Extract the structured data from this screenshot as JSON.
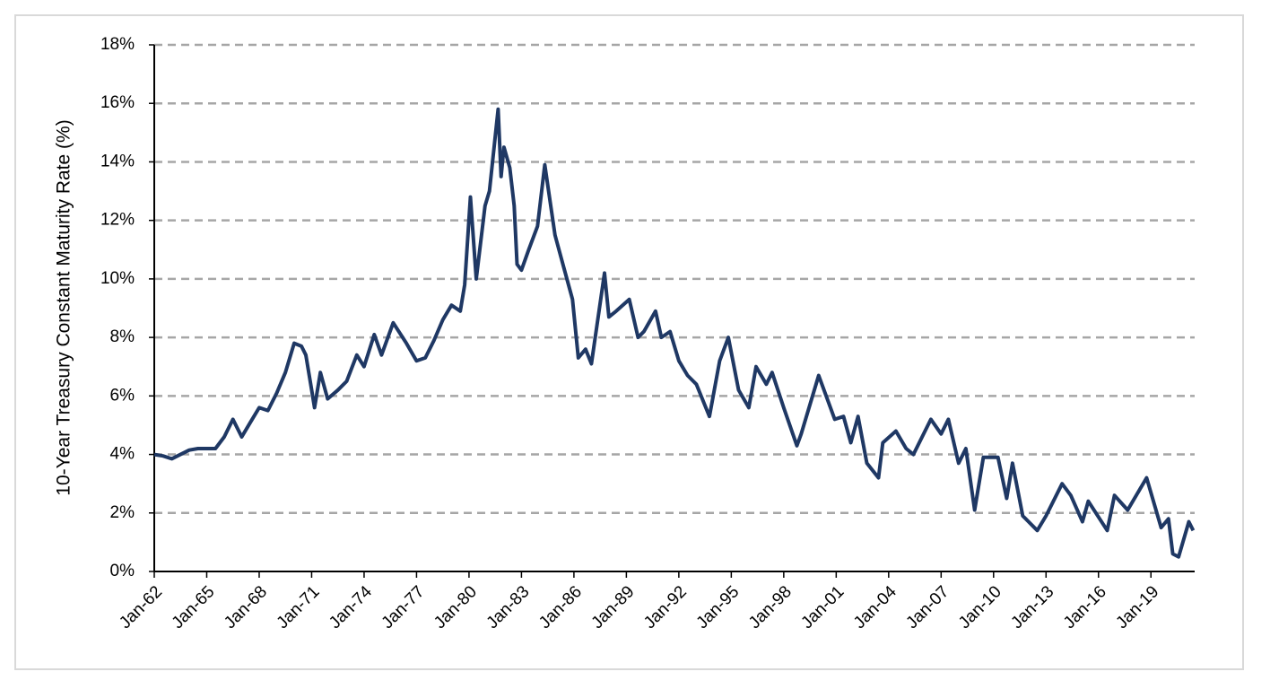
{
  "chart_data": {
    "type": "line",
    "y_label": "10-Year Treasury Constant Maturity Rate (%)",
    "ylim": [
      0,
      18
    ],
    "yticks": [
      {
        "value": 0,
        "label": "0%"
      },
      {
        "value": 2,
        "label": "2%"
      },
      {
        "value": 4,
        "label": "4%"
      },
      {
        "value": 6,
        "label": "6%"
      },
      {
        "value": 8,
        "label": "8%"
      },
      {
        "value": 10,
        "label": "10%"
      },
      {
        "value": 12,
        "label": "12%"
      },
      {
        "value": 14,
        "label": "14%"
      },
      {
        "value": 16,
        "label": "16%"
      },
      {
        "value": 18,
        "label": "18%"
      }
    ],
    "xlim": [
      "1962-01",
      "2021-07"
    ],
    "xticks": [
      {
        "value": "1962-01",
        "label": "Jan-62"
      },
      {
        "value": "1965-01",
        "label": "Jan-65"
      },
      {
        "value": "1968-01",
        "label": "Jan-68"
      },
      {
        "value": "1971-01",
        "label": "Jan-71"
      },
      {
        "value": "1974-01",
        "label": "Jan-74"
      },
      {
        "value": "1977-01",
        "label": "Jan-77"
      },
      {
        "value": "1980-01",
        "label": "Jan-80"
      },
      {
        "value": "1983-01",
        "label": "Jan-83"
      },
      {
        "value": "1986-01",
        "label": "Jan-86"
      },
      {
        "value": "1989-01",
        "label": "Jan-89"
      },
      {
        "value": "1992-01",
        "label": "Jan-92"
      },
      {
        "value": "1995-01",
        "label": "Jan-95"
      },
      {
        "value": "1998-01",
        "label": "Jan-98"
      },
      {
        "value": "2001-01",
        "label": "Jan-01"
      },
      {
        "value": "2004-01",
        "label": "Jan-04"
      },
      {
        "value": "2007-01",
        "label": "Jan-07"
      },
      {
        "value": "2010-01",
        "label": "Jan-10"
      },
      {
        "value": "2013-01",
        "label": "Jan-13"
      },
      {
        "value": "2016-01",
        "label": "Jan-16"
      },
      {
        "value": "2019-01",
        "label": "Jan-19"
      }
    ],
    "grid": true,
    "series": [
      {
        "color": "#1f3864",
        "x": [
          "1962-01",
          "1962-07",
          "1963-01",
          "1963-07",
          "1964-01",
          "1964-07",
          "1965-01",
          "1965-07",
          "1966-01",
          "1966-07",
          "1967-01",
          "1967-07",
          "1968-01",
          "1968-07",
          "1969-01",
          "1969-07",
          "1970-01",
          "1970-06",
          "1970-09",
          "1971-01",
          "1971-03",
          "1971-07",
          "1971-12",
          "1972-07",
          "1973-01",
          "1973-08",
          "1974-01",
          "1974-08",
          "1975-01",
          "1975-09",
          "1976-06",
          "1977-01",
          "1977-07",
          "1978-01",
          "1978-07",
          "1979-01",
          "1979-07",
          "1979-10",
          "1980-02",
          "1980-06",
          "1980-12",
          "1981-03",
          "1981-09",
          "1981-11",
          "1982-01",
          "1982-05",
          "1982-08",
          "1982-10",
          "1983-01",
          "1983-06",
          "1983-12",
          "1984-05",
          "1984-12",
          "1985-06",
          "1985-12",
          "1986-04",
          "1986-09",
          "1987-01",
          "1987-10",
          "1988-01",
          "1988-06",
          "1989-03",
          "1989-09",
          "1990-01",
          "1990-09",
          "1991-01",
          "1991-07",
          "1992-01",
          "1992-07",
          "1993-01",
          "1993-10",
          "1994-05",
          "1994-11",
          "1995-06",
          "1996-01",
          "1996-06",
          "1997-01",
          "1997-05",
          "1998-01",
          "1998-10",
          "1999-01",
          "2000-01",
          "2000-12",
          "2001-06",
          "2001-11",
          "2002-04",
          "2002-10",
          "2003-06",
          "2003-09",
          "2004-06",
          "2005-01",
          "2005-06",
          "2006-06",
          "2007-01",
          "2007-06",
          "2008-01",
          "2008-06",
          "2008-12",
          "2009-06",
          "2010-04",
          "2010-10",
          "2011-02",
          "2011-09",
          "2012-07",
          "2013-01",
          "2013-12",
          "2014-06",
          "2015-02",
          "2015-06",
          "2016-07",
          "2016-12",
          "2017-09",
          "2018-10",
          "2019-08",
          "2020-01",
          "2020-04",
          "2020-08",
          "2021-03",
          "2021-06"
        ],
        "values": [
          4.0,
          3.95,
          3.85,
          4.0,
          4.15,
          4.2,
          4.2,
          4.2,
          4.6,
          5.2,
          4.6,
          5.1,
          5.6,
          5.5,
          6.1,
          6.8,
          7.8,
          7.7,
          7.4,
          6.2,
          5.6,
          6.8,
          5.9,
          6.2,
          6.5,
          7.4,
          7.0,
          8.1,
          7.4,
          8.5,
          7.8,
          7.2,
          7.3,
          7.9,
          8.6,
          9.1,
          8.9,
          9.8,
          12.8,
          10.0,
          12.5,
          13.0,
          15.8,
          13.5,
          14.5,
          13.8,
          12.5,
          10.5,
          10.3,
          11.0,
          11.8,
          13.9,
          11.5,
          10.4,
          9.3,
          7.3,
          7.6,
          7.1,
          10.2,
          8.7,
          8.9,
          9.3,
          8.0,
          8.2,
          8.9,
          8.0,
          8.2,
          7.2,
          6.7,
          6.4,
          5.3,
          7.2,
          8.0,
          6.2,
          5.6,
          7.0,
          6.4,
          6.8,
          5.6,
          4.3,
          4.7,
          6.7,
          5.2,
          5.3,
          4.4,
          5.3,
          3.7,
          3.2,
          4.4,
          4.8,
          4.2,
          4.0,
          5.2,
          4.7,
          5.2,
          3.7,
          4.2,
          2.1,
          3.9,
          3.9,
          2.5,
          3.7,
          1.9,
          1.4,
          1.9,
          3.0,
          2.6,
          1.7,
          2.4,
          1.4,
          2.6,
          2.1,
          3.2,
          1.5,
          1.8,
          0.6,
          0.5,
          1.7,
          1.4
        ]
      }
    ]
  }
}
